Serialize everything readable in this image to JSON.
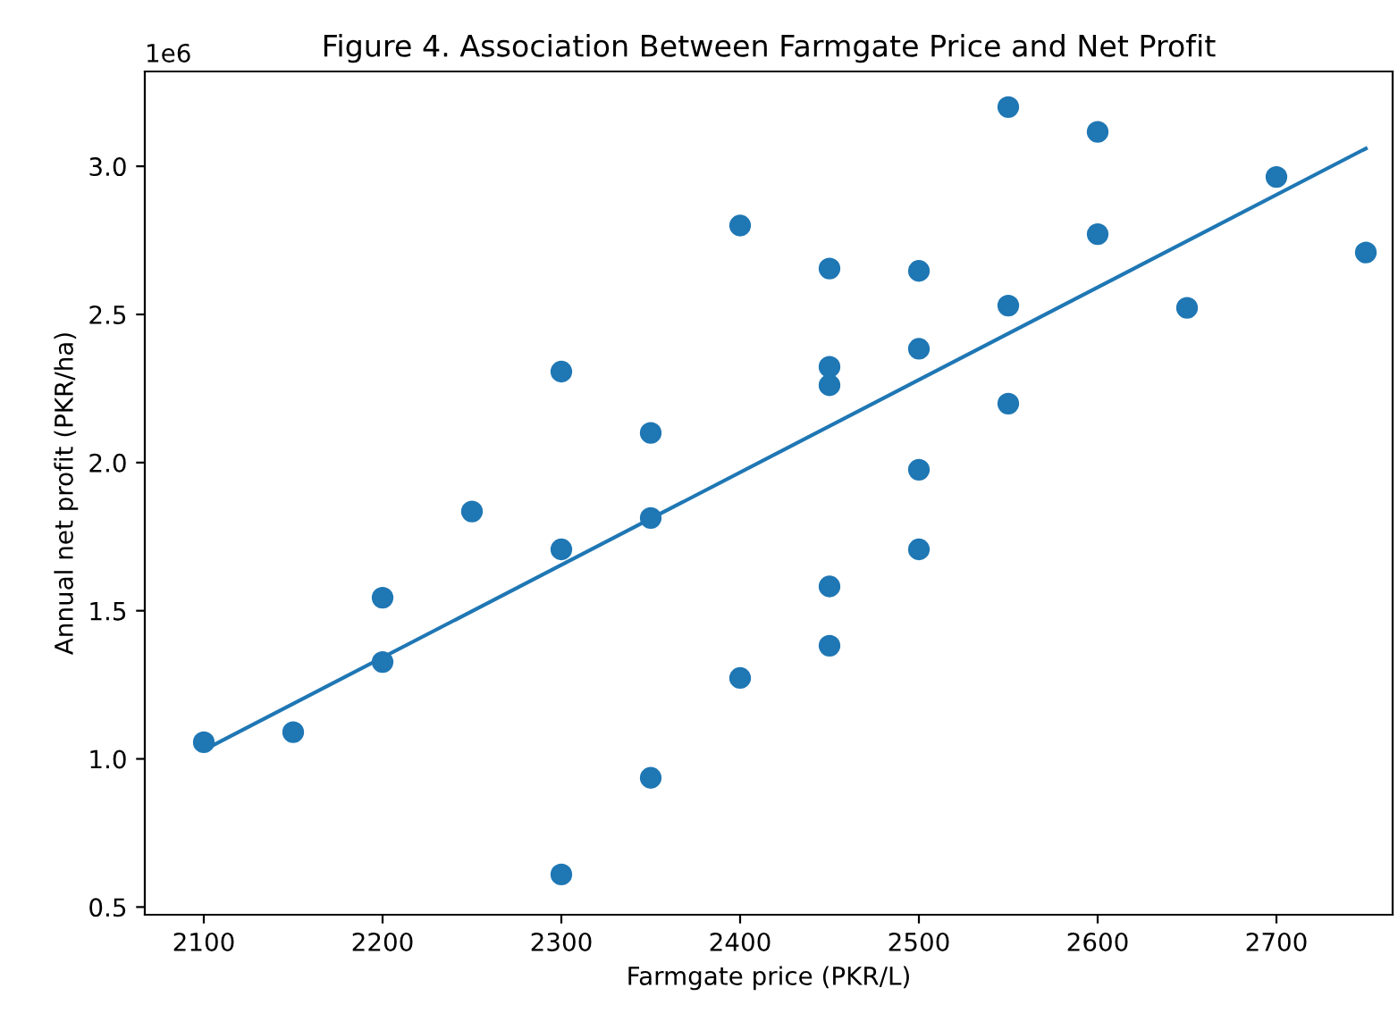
{
  "chart_data": {
    "type": "scatter",
    "title": "Figure 4. Association Between Farmgate Price and Net Profit",
    "xlabel": "Farmgate price (PKR/L)",
    "ylabel": "Annual net profit (PKR/ha)",
    "annotations": [
      "1e6"
    ],
    "series": [
      {
        "color": "#1f77b4",
        "marker": "circle",
        "x": [
          2100,
          2150,
          2200,
          2200,
          2250,
          2300,
          2300,
          2300,
          2350,
          2350,
          2350,
          2400,
          2400,
          2450,
          2450,
          2450,
          2450,
          2450,
          2500,
          2500,
          2500,
          2500,
          2550,
          2550,
          2550,
          2600,
          2600,
          2650,
          2700,
          2750
        ],
        "values": [
          1.056,
          1.09,
          1.544,
          1.327,
          1.835,
          2.307,
          1.707,
          0.61,
          2.1,
          1.813,
          0.936,
          2.8,
          1.273,
          2.655,
          2.323,
          2.261,
          1.582,
          1.382,
          2.647,
          2.384,
          1.976,
          1.707,
          3.2,
          2.53,
          2.199,
          3.116,
          2.771,
          2.522,
          2.964,
          2.709
        ]
      },
      {
        "type": "line",
        "color": "#1f77b4",
        "marker": "none",
        "x": [
          2100,
          2750
        ],
        "values": [
          1.03,
          3.06
        ]
      }
    ],
    "xlim": [
      2067,
      2765
    ],
    "ylim": [
      0.474,
      3.32
    ],
    "xticks": [
      2100,
      2200,
      2300,
      2400,
      2500,
      2600,
      2700
    ],
    "yticks": [
      0.5,
      {
        "value": 1,
        "label": "1.0"
      },
      1.5,
      {
        "value": 2,
        "label": "2.0"
      },
      2.5,
      {
        "value": 3,
        "label": "3.0"
      }
    ],
    "grid": false,
    "legend": false
  }
}
